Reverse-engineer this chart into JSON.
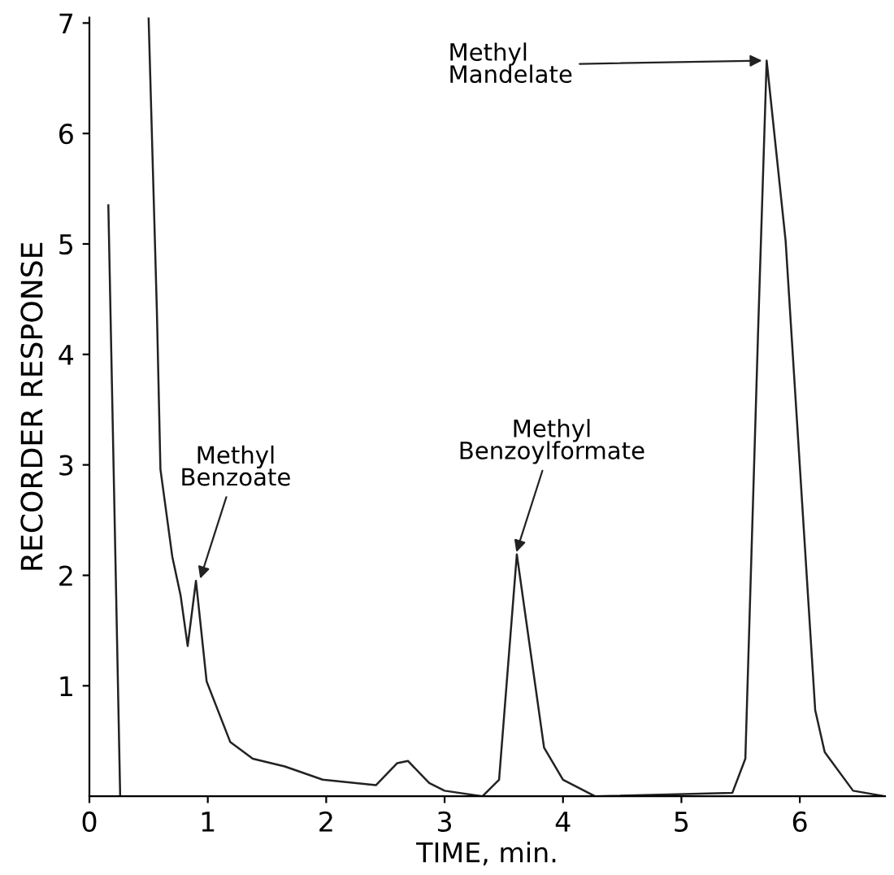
{
  "chart_data": {
    "type": "line",
    "xlabel": "TIME, min.",
    "ylabel": "RECORDER RESPONSE",
    "xlim": [
      0,
      6.72
    ],
    "ylim": [
      0,
      7.05
    ],
    "xticks": [
      0,
      1,
      2,
      3,
      4,
      5,
      6
    ],
    "yticks": [
      1,
      2,
      3,
      4,
      5,
      6,
      7
    ],
    "grid": false,
    "legend": false,
    "marker": "none",
    "line_style": "solid",
    "series": [
      {
        "color": "#222222",
        "x": [
          0.16,
          0.26
        ],
        "values": [
          5.35,
          0
        ]
      },
      {
        "color": "#222222",
        "x": [
          0.5,
          0.57,
          0.6,
          0.7,
          0.77,
          0.83,
          0.9,
          0.99,
          1.19,
          1.38,
          1.65,
          1.97,
          2.42,
          2.6,
          2.69,
          2.87,
          3.0,
          3.32,
          3.46,
          3.61,
          3.84,
          4.0,
          4.27,
          5.43,
          5.54,
          5.65,
          5.72,
          5.88,
          6.13,
          6.21,
          6.45,
          6.72
        ],
        "values": [
          7.05,
          4.39,
          2.96,
          2.17,
          1.82,
          1.36,
          1.95,
          1.04,
          0.49,
          0.34,
          0.27,
          0.15,
          0.1,
          0.3,
          0.32,
          0.12,
          0.05,
          0,
          0.15,
          2.19,
          0.44,
          0.15,
          0,
          0.03,
          0.34,
          4.29,
          6.66,
          5.03,
          0.78,
          0.4,
          0.05,
          0
        ]
      }
    ],
    "annotations": [
      {
        "text": "Methyl\nBenzoate",
        "x": 0.93,
        "y": 1.95
      },
      {
        "text": "Methyl\nBenzoylformate",
        "x": 3.6,
        "y": 2.19
      },
      {
        "text": "Methyl\nMandelate",
        "x": 5.7,
        "y": 6.66
      }
    ]
  }
}
